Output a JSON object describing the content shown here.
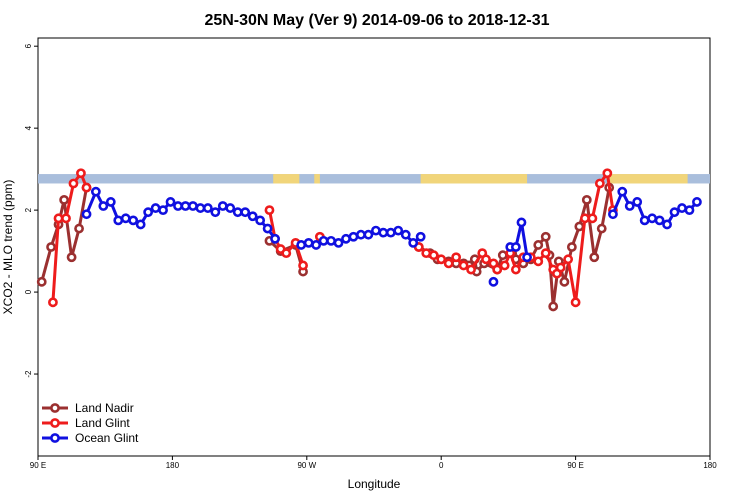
{
  "chart_data": {
    "type": "line",
    "title": "25N-30N May (Ver 9)   2014-09-06 to 2018-12-31",
    "xlabel": "Longitude",
    "ylabel": "XCO2 - MLO trend (ppm)",
    "xlim": [
      0,
      360
    ],
    "ylim": [
      -4,
      6.2
    ],
    "x_ticks": [
      {
        "x": 0,
        "label": "90 E"
      },
      {
        "x": 72,
        "label": "180"
      },
      {
        "x": 144,
        "label": "90 W"
      },
      {
        "x": 216,
        "label": "0"
      },
      {
        "x": 288,
        "label": "90 E"
      },
      {
        "x": 360,
        "label": "180"
      }
    ],
    "y_ticks": [
      -2,
      0,
      2,
      4,
      6
    ],
    "grid": false,
    "legend_position": "bottom-left",
    "land_band": {
      "y_range": [
        2.65,
        2.88
      ],
      "ocean_color": "#a9bedc",
      "land_color": "#f1d57a",
      "land_x": [
        [
          126,
          140
        ],
        [
          148,
          151
        ],
        [
          205,
          260
        ],
        [
          258,
          262
        ],
        [
          305,
          348
        ]
      ]
    },
    "series": [
      {
        "name": "Land Nadir",
        "color": "#9b3030",
        "segments": [
          [
            [
              2,
              0.25
            ],
            [
              7,
              1.1
            ],
            [
              11,
              1.65
            ],
            [
              14,
              2.25
            ],
            [
              18,
              0.85
            ],
            [
              22,
              1.55
            ],
            [
              26,
              2.55
            ]
          ],
          [
            [
              124,
              1.25
            ],
            [
              130,
              1.0
            ],
            [
              138,
              1.15
            ],
            [
              142,
              0.5
            ]
          ],
          [
            [
              204,
              1.1
            ],
            [
              210,
              0.95
            ],
            [
              214,
              0.8
            ],
            [
              220,
              0.75
            ],
            [
              224,
              0.7
            ],
            [
              228,
              0.7
            ],
            [
              231,
              0.65
            ],
            [
              234,
              0.8
            ],
            [
              235,
              0.5
            ],
            [
              239,
              0.7
            ],
            [
              246,
              0.55
            ],
            [
              249,
              0.9
            ],
            [
              254,
              0.95
            ],
            [
              256,
              0.8
            ],
            [
              260,
              0.7
            ],
            [
              264,
              0.8
            ],
            [
              268,
              1.15
            ],
            [
              272,
              1.35
            ],
            [
              274,
              0.9
            ],
            [
              276,
              -0.35
            ],
            [
              279,
              0.75
            ],
            [
              282,
              0.25
            ],
            [
              286,
              1.1
            ],
            [
              290,
              1.6
            ],
            [
              294,
              2.25
            ],
            [
              298,
              0.85
            ],
            [
              302,
              1.55
            ],
            [
              306,
              2.55
            ]
          ]
        ]
      },
      {
        "name": "Land Glint",
        "color": "#ee1c1c",
        "segments": [
          [
            [
              8,
              -0.25
            ],
            [
              11,
              1.8
            ],
            [
              15,
              1.8
            ],
            [
              19,
              2.65
            ],
            [
              23,
              2.9
            ],
            [
              26,
              2.55
            ]
          ],
          [
            [
              124,
              2.0
            ],
            [
              127,
              1.3
            ],
            [
              130,
              1.05
            ],
            [
              133,
              0.95
            ],
            [
              138,
              1.2
            ],
            [
              142,
              0.65
            ]
          ],
          [
            [
              151,
              1.35
            ]
          ],
          [
            [
              204,
              1.1
            ],
            [
              208,
              0.95
            ],
            [
              212,
              0.9
            ],
            [
              216,
              0.8
            ],
            [
              220,
              0.7
            ],
            [
              224,
              0.85
            ],
            [
              228,
              0.65
            ],
            [
              232,
              0.55
            ],
            [
              238,
              0.95
            ],
            [
              240,
              0.8
            ],
            [
              244,
              0.7
            ],
            [
              246,
              0.55
            ],
            [
              250,
              0.65
            ],
            [
              253,
              0.95
            ],
            [
              256,
              0.55
            ],
            [
              260,
              0.85
            ],
            [
              264,
              0.85
            ],
            [
              268,
              0.75
            ],
            [
              272,
              0.95
            ],
            [
              276,
              0.55
            ],
            [
              278,
              0.45
            ],
            [
              280,
              0.6
            ],
            [
              284,
              0.8
            ],
            [
              288,
              -0.25
            ],
            [
              293,
              1.8
            ],
            [
              297,
              1.8
            ],
            [
              301,
              2.65
            ],
            [
              305,
              2.9
            ],
            [
              308,
              2.0
            ]
          ]
        ]
      },
      {
        "name": "Ocean Glint",
        "color": "#1010e0",
        "segments": [
          [
            [
              26,
              1.9
            ],
            [
              31,
              2.45
            ],
            [
              35,
              2.1
            ],
            [
              39,
              2.2
            ],
            [
              43,
              1.75
            ],
            [
              47,
              1.8
            ],
            [
              51,
              1.75
            ],
            [
              55,
              1.65
            ],
            [
              59,
              1.95
            ],
            [
              63,
              2.05
            ],
            [
              67,
              2.0
            ],
            [
              71,
              2.2
            ],
            [
              75,
              2.1
            ],
            [
              79,
              2.1
            ],
            [
              83,
              2.1
            ],
            [
              87,
              2.05
            ],
            [
              91,
              2.05
            ],
            [
              95,
              1.95
            ],
            [
              99,
              2.1
            ],
            [
              103,
              2.05
            ],
            [
              107,
              1.95
            ],
            [
              111,
              1.95
            ],
            [
              115,
              1.85
            ],
            [
              119,
              1.75
            ],
            [
              123,
              1.55
            ],
            [
              127,
              1.3
            ]
          ],
          [
            [
              141,
              1.15
            ],
            [
              145,
              1.2
            ],
            [
              149,
              1.15
            ],
            [
              153,
              1.25
            ],
            [
              157,
              1.25
            ],
            [
              161,
              1.2
            ],
            [
              165,
              1.3
            ],
            [
              169,
              1.35
            ],
            [
              173,
              1.4
            ],
            [
              177,
              1.4
            ],
            [
              181,
              1.5
            ],
            [
              185,
              1.45
            ],
            [
              189,
              1.45
            ],
            [
              193,
              1.5
            ],
            [
              197,
              1.4
            ],
            [
              201,
              1.2
            ],
            [
              205,
              1.35
            ]
          ],
          [
            [
              244,
              0.25
            ]
          ],
          [
            [
              253,
              1.1
            ],
            [
              256,
              1.1
            ],
            [
              259,
              1.7
            ],
            [
              262,
              0.85
            ]
          ],
          [
            [
              308,
              1.9
            ],
            [
              313,
              2.45
            ],
            [
              317,
              2.1
            ],
            [
              321,
              2.2
            ],
            [
              325,
              1.75
            ],
            [
              329,
              1.8
            ],
            [
              333,
              1.75
            ],
            [
              337,
              1.65
            ],
            [
              341,
              1.95
            ],
            [
              345,
              2.05
            ],
            [
              349,
              2.0
            ],
            [
              353,
              2.2
            ]
          ]
        ]
      }
    ]
  }
}
